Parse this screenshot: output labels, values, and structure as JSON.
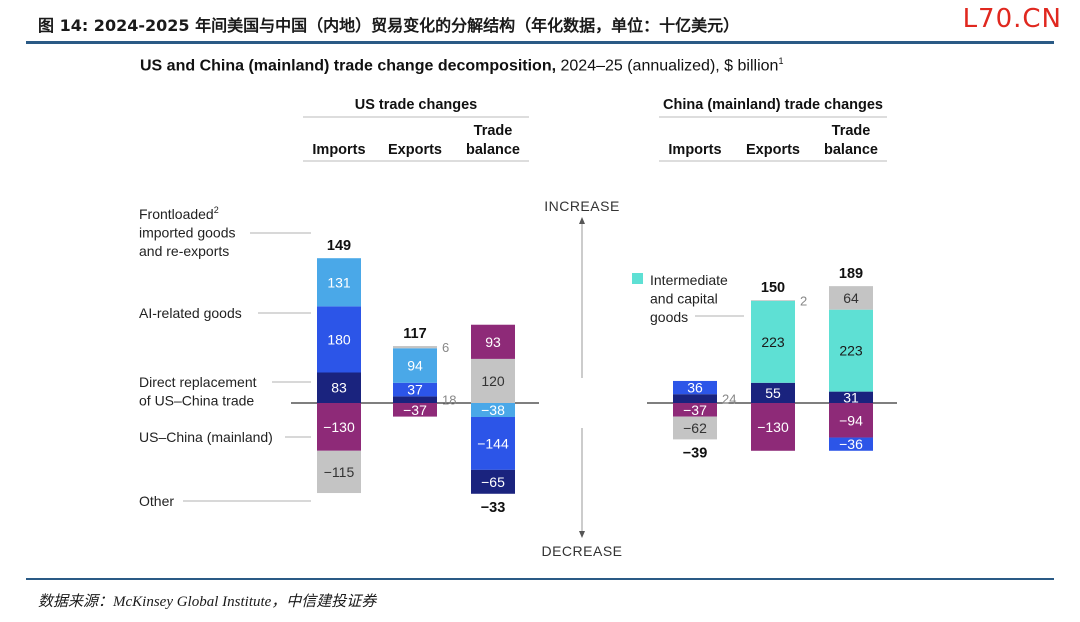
{
  "page": {
    "caption": "图 14: 2024-2025 年间美国与中国（内地）贸易变化的分解结构（年化数据，单位：十亿美元）",
    "watermark": "L70.CN",
    "source": "数据来源：McKinsey Global Institute，中信建投证券"
  },
  "chart_data": {
    "type": "bar",
    "title_bold": "US and China (mainland) trade change decomposition,",
    "title_rest": " 2024–25 (annualized), $ billion",
    "title_note": "1",
    "direction_up": "INCREASE",
    "direction_down": "DECREASE",
    "colors": {
      "frontloaded": "#4aa8e8",
      "ai": "#2c55e8",
      "direct": "#1a237e",
      "uschina": "#8e2a78",
      "other": "#c4c4c4",
      "intermediate": "#5ee0d4"
    },
    "panels": [
      {
        "title": "US trade changes",
        "columns": [
          {
            "label": "Imports",
            "total": "149",
            "segments": [
              {
                "key": "direct",
                "value": 83
              },
              {
                "key": "ai",
                "value": 180
              },
              {
                "key": "frontloaded",
                "value": 131
              },
              {
                "key": "uschina",
                "value": -130
              },
              {
                "key": "other",
                "value": -115
              }
            ]
          },
          {
            "label": "Exports",
            "total": "117",
            "segments": [
              {
                "key": "direct",
                "value": 18,
                "outside": true
              },
              {
                "key": "frontloaded",
                "value": 37,
                "color": "ai"
              },
              {
                "key": "frontloaded",
                "value": 94
              },
              {
                "key": "other",
                "value": 6,
                "outside": true
              },
              {
                "key": "uschina",
                "value": -37
              }
            ]
          },
          {
            "label": "Trade balance",
            "total": "−33",
            "segments": [
              {
                "key": "other",
                "value": 120
              },
              {
                "key": "uschina",
                "value": 93
              },
              {
                "key": "frontloaded",
                "value": -38
              },
              {
                "key": "ai",
                "value": -144
              },
              {
                "key": "direct",
                "value": -65
              }
            ]
          }
        ]
      },
      {
        "title": "China (mainland) trade changes",
        "columns": [
          {
            "label": "Imports",
            "total": "−39",
            "segments": [
              {
                "key": "direct",
                "value": 24,
                "outside": true
              },
              {
                "key": "ai",
                "value": 36
              },
              {
                "key": "uschina",
                "value": -37
              },
              {
                "key": "other",
                "value": -62
              }
            ]
          },
          {
            "label": "Exports",
            "total": "150",
            "segments": [
              {
                "key": "direct",
                "value": 55
              },
              {
                "key": "intermediate",
                "value": 223
              },
              {
                "key": "other",
                "value": 2,
                "outside": true
              },
              {
                "key": "uschina",
                "value": -130
              }
            ]
          },
          {
            "label": "Trade balance",
            "total": "189",
            "segments": [
              {
                "key": "direct",
                "value": 31
              },
              {
                "key": "intermediate",
                "value": 223
              },
              {
                "key": "other",
                "value": 64
              },
              {
                "key": "uschina",
                "value": -94
              },
              {
                "key": "ai",
                "value": -36
              }
            ]
          }
        ]
      }
    ],
    "category_labels": [
      {
        "key": "frontloaded",
        "lines": [
          "Frontloaded",
          "imported goods",
          "and re-exports"
        ],
        "note": "2"
      },
      {
        "key": "ai",
        "lines": [
          "AI-related goods"
        ]
      },
      {
        "key": "direct",
        "lines": [
          "Direct replacement",
          "of US–China trade"
        ]
      },
      {
        "key": "uschina",
        "lines": [
          "US–China (mainland)"
        ]
      },
      {
        "key": "other",
        "lines": [
          "Other"
        ]
      },
      {
        "key": "intermediate",
        "lines": [
          "Intermediate",
          "and capital",
          "goods"
        ]
      }
    ]
  }
}
